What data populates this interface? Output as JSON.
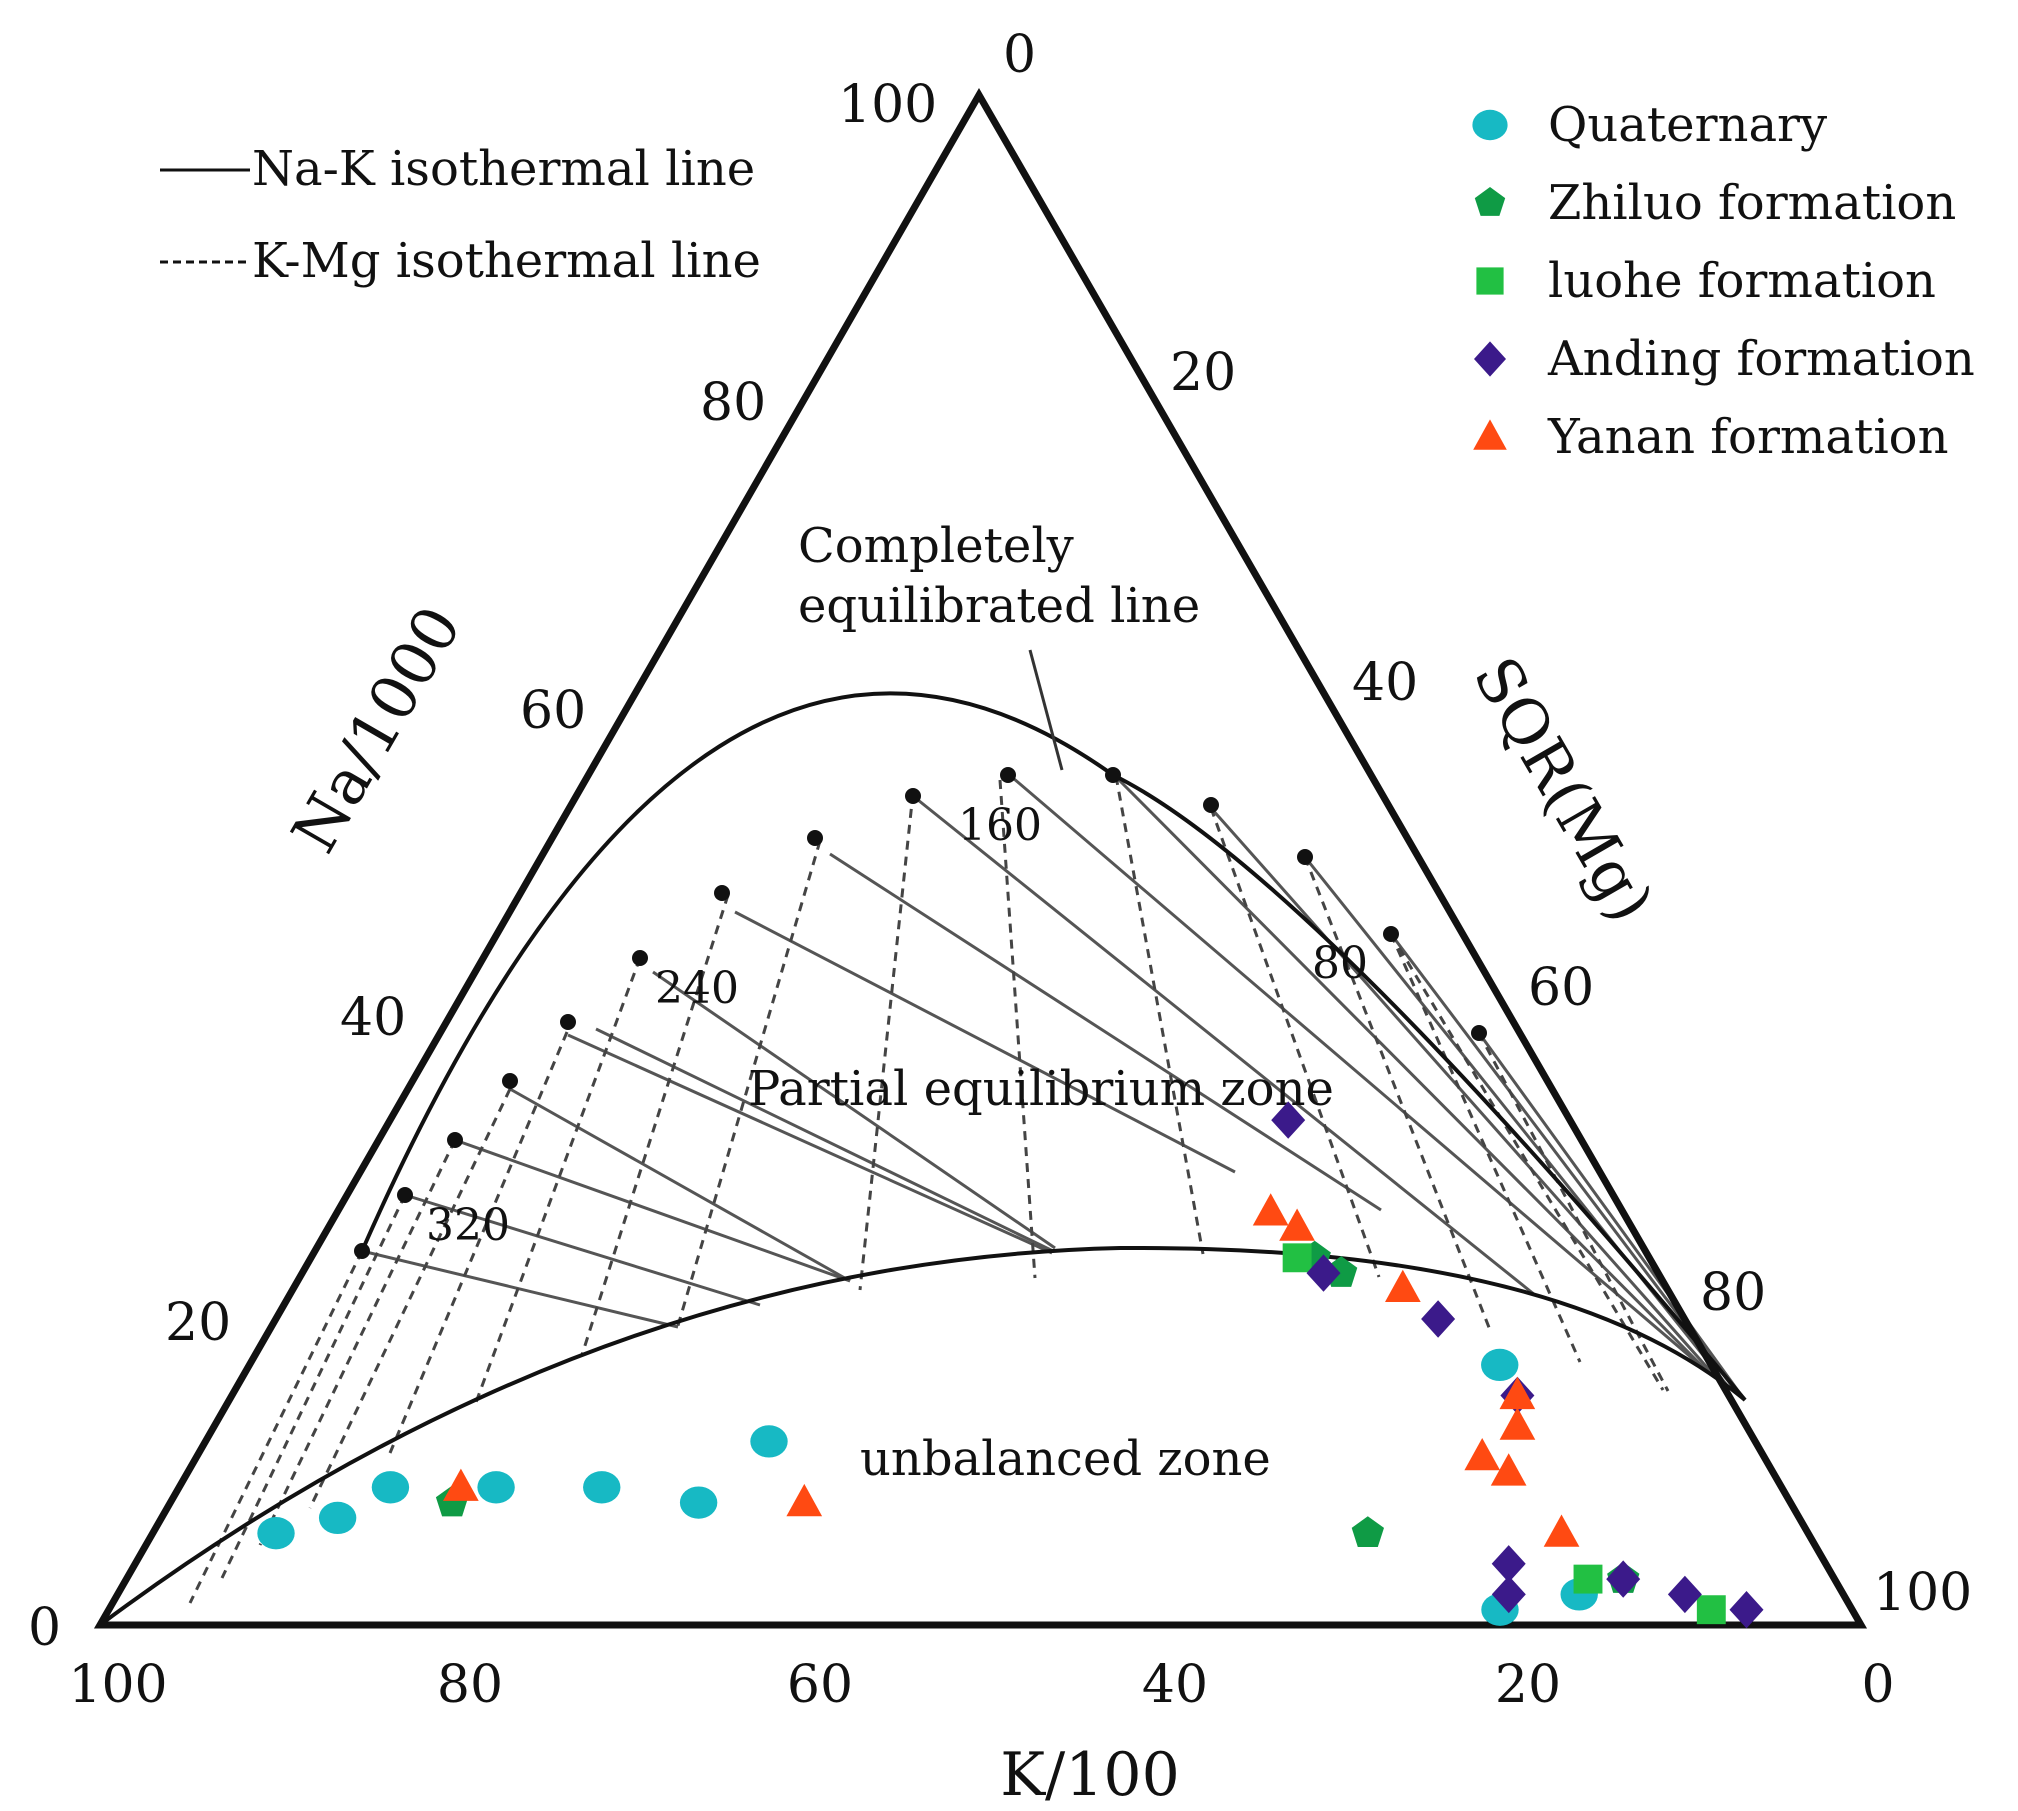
{
  "chart_data": {
    "type": "ternary",
    "title": "",
    "axes": {
      "left": "Na/1000",
      "right": "SQR(Mg)",
      "bottom": "K/100"
    },
    "ticks": {
      "left": [
        "0",
        "20",
        "40",
        "60",
        "80",
        "100"
      ],
      "right": [
        "0",
        "20",
        "40",
        "60",
        "80",
        "100"
      ],
      "bottom": [
        "100",
        "80",
        "60",
        "40",
        "20",
        "0"
      ]
    },
    "line_legend": {
      "solid": "Na-K isothermal line",
      "dashed": "K-Mg isothermal line",
      "solid_prefix": "——",
      "dashed_prefix": "------"
    },
    "annotations": {
      "complete_line": [
        "Completely",
        "equilibrated line"
      ],
      "partial_zone": "Partial equilibrium zone",
      "unbalanced_zone": "unbalanced zone",
      "isotherm_labels": [
        "160",
        "240",
        "320",
        "80"
      ]
    },
    "series": [
      {
        "name": "Quaternary",
        "marker": "circle",
        "color": "#17b9c4",
        "points": [
          {
            "na": 6,
            "k": 87,
            "mg": 7
          },
          {
            "na": 7,
            "k": 83,
            "mg": 10
          },
          {
            "na": 9,
            "k": 79,
            "mg": 12
          },
          {
            "na": 9,
            "k": 73,
            "mg": 18
          },
          {
            "na": 9,
            "k": 67,
            "mg": 24
          },
          {
            "na": 12,
            "k": 56,
            "mg": 32
          },
          {
            "na": 8,
            "k": 62,
            "mg": 30
          },
          {
            "na": 1,
            "k": 20,
            "mg": 79
          },
          {
            "na": 2,
            "k": 15,
            "mg": 83
          },
          {
            "na": 17,
            "k": 12,
            "mg": 71
          }
        ]
      },
      {
        "name": "Zhiluo formation",
        "marker": "pentagon",
        "color": "#0f9b45",
        "points": [
          {
            "na": 8,
            "k": 76,
            "mg": 16
          },
          {
            "na": 24,
            "k": 19,
            "mg": 57
          },
          {
            "na": 23,
            "k": 18,
            "mg": 59
          },
          {
            "na": 6,
            "k": 25,
            "mg": 69
          },
          {
            "na": 3,
            "k": 12,
            "mg": 85
          }
        ]
      },
      {
        "name": "luohe formation",
        "marker": "square",
        "color": "#22c043",
        "points": [
          {
            "na": 24,
            "k": 20,
            "mg": 56
          },
          {
            "na": 1,
            "k": 8,
            "mg": 91
          },
          {
            "na": 3,
            "k": 14,
            "mg": 83
          }
        ]
      },
      {
        "name": "Anding formation",
        "marker": "diamond",
        "color": "#3b1a8a",
        "points": [
          {
            "na": 33,
            "k": 16,
            "mg": 51
          },
          {
            "na": 23,
            "k": 19,
            "mg": 58
          },
          {
            "na": 20,
            "k": 14,
            "mg": 66
          },
          {
            "na": 15,
            "k": 12,
            "mg": 73
          },
          {
            "na": 4,
            "k": 18,
            "mg": 78
          },
          {
            "na": 2,
            "k": 19,
            "mg": 79
          },
          {
            "na": 3,
            "k": 12,
            "mg": 85
          },
          {
            "na": 2,
            "k": 9,
            "mg": 89
          },
          {
            "na": 1,
            "k": 6,
            "mg": 93
          }
        ]
      },
      {
        "name": "Yanan formation",
        "marker": "triangle",
        "color": "#ff4a12",
        "points": [
          {
            "na": 27,
            "k": 20,
            "mg": 53
          },
          {
            "na": 26,
            "k": 19,
            "mg": 55
          },
          {
            "na": 22,
            "k": 15,
            "mg": 63
          },
          {
            "na": 15,
            "k": 12,
            "mg": 73
          },
          {
            "na": 13,
            "k": 13,
            "mg": 74
          },
          {
            "na": 11,
            "k": 16,
            "mg": 73
          },
          {
            "na": 10,
            "k": 15,
            "mg": 75
          },
          {
            "na": 9,
            "k": 75,
            "mg": 16
          },
          {
            "na": 8,
            "k": 56,
            "mg": 36
          },
          {
            "na": 6,
            "k": 14,
            "mg": 80
          }
        ]
      }
    ]
  }
}
